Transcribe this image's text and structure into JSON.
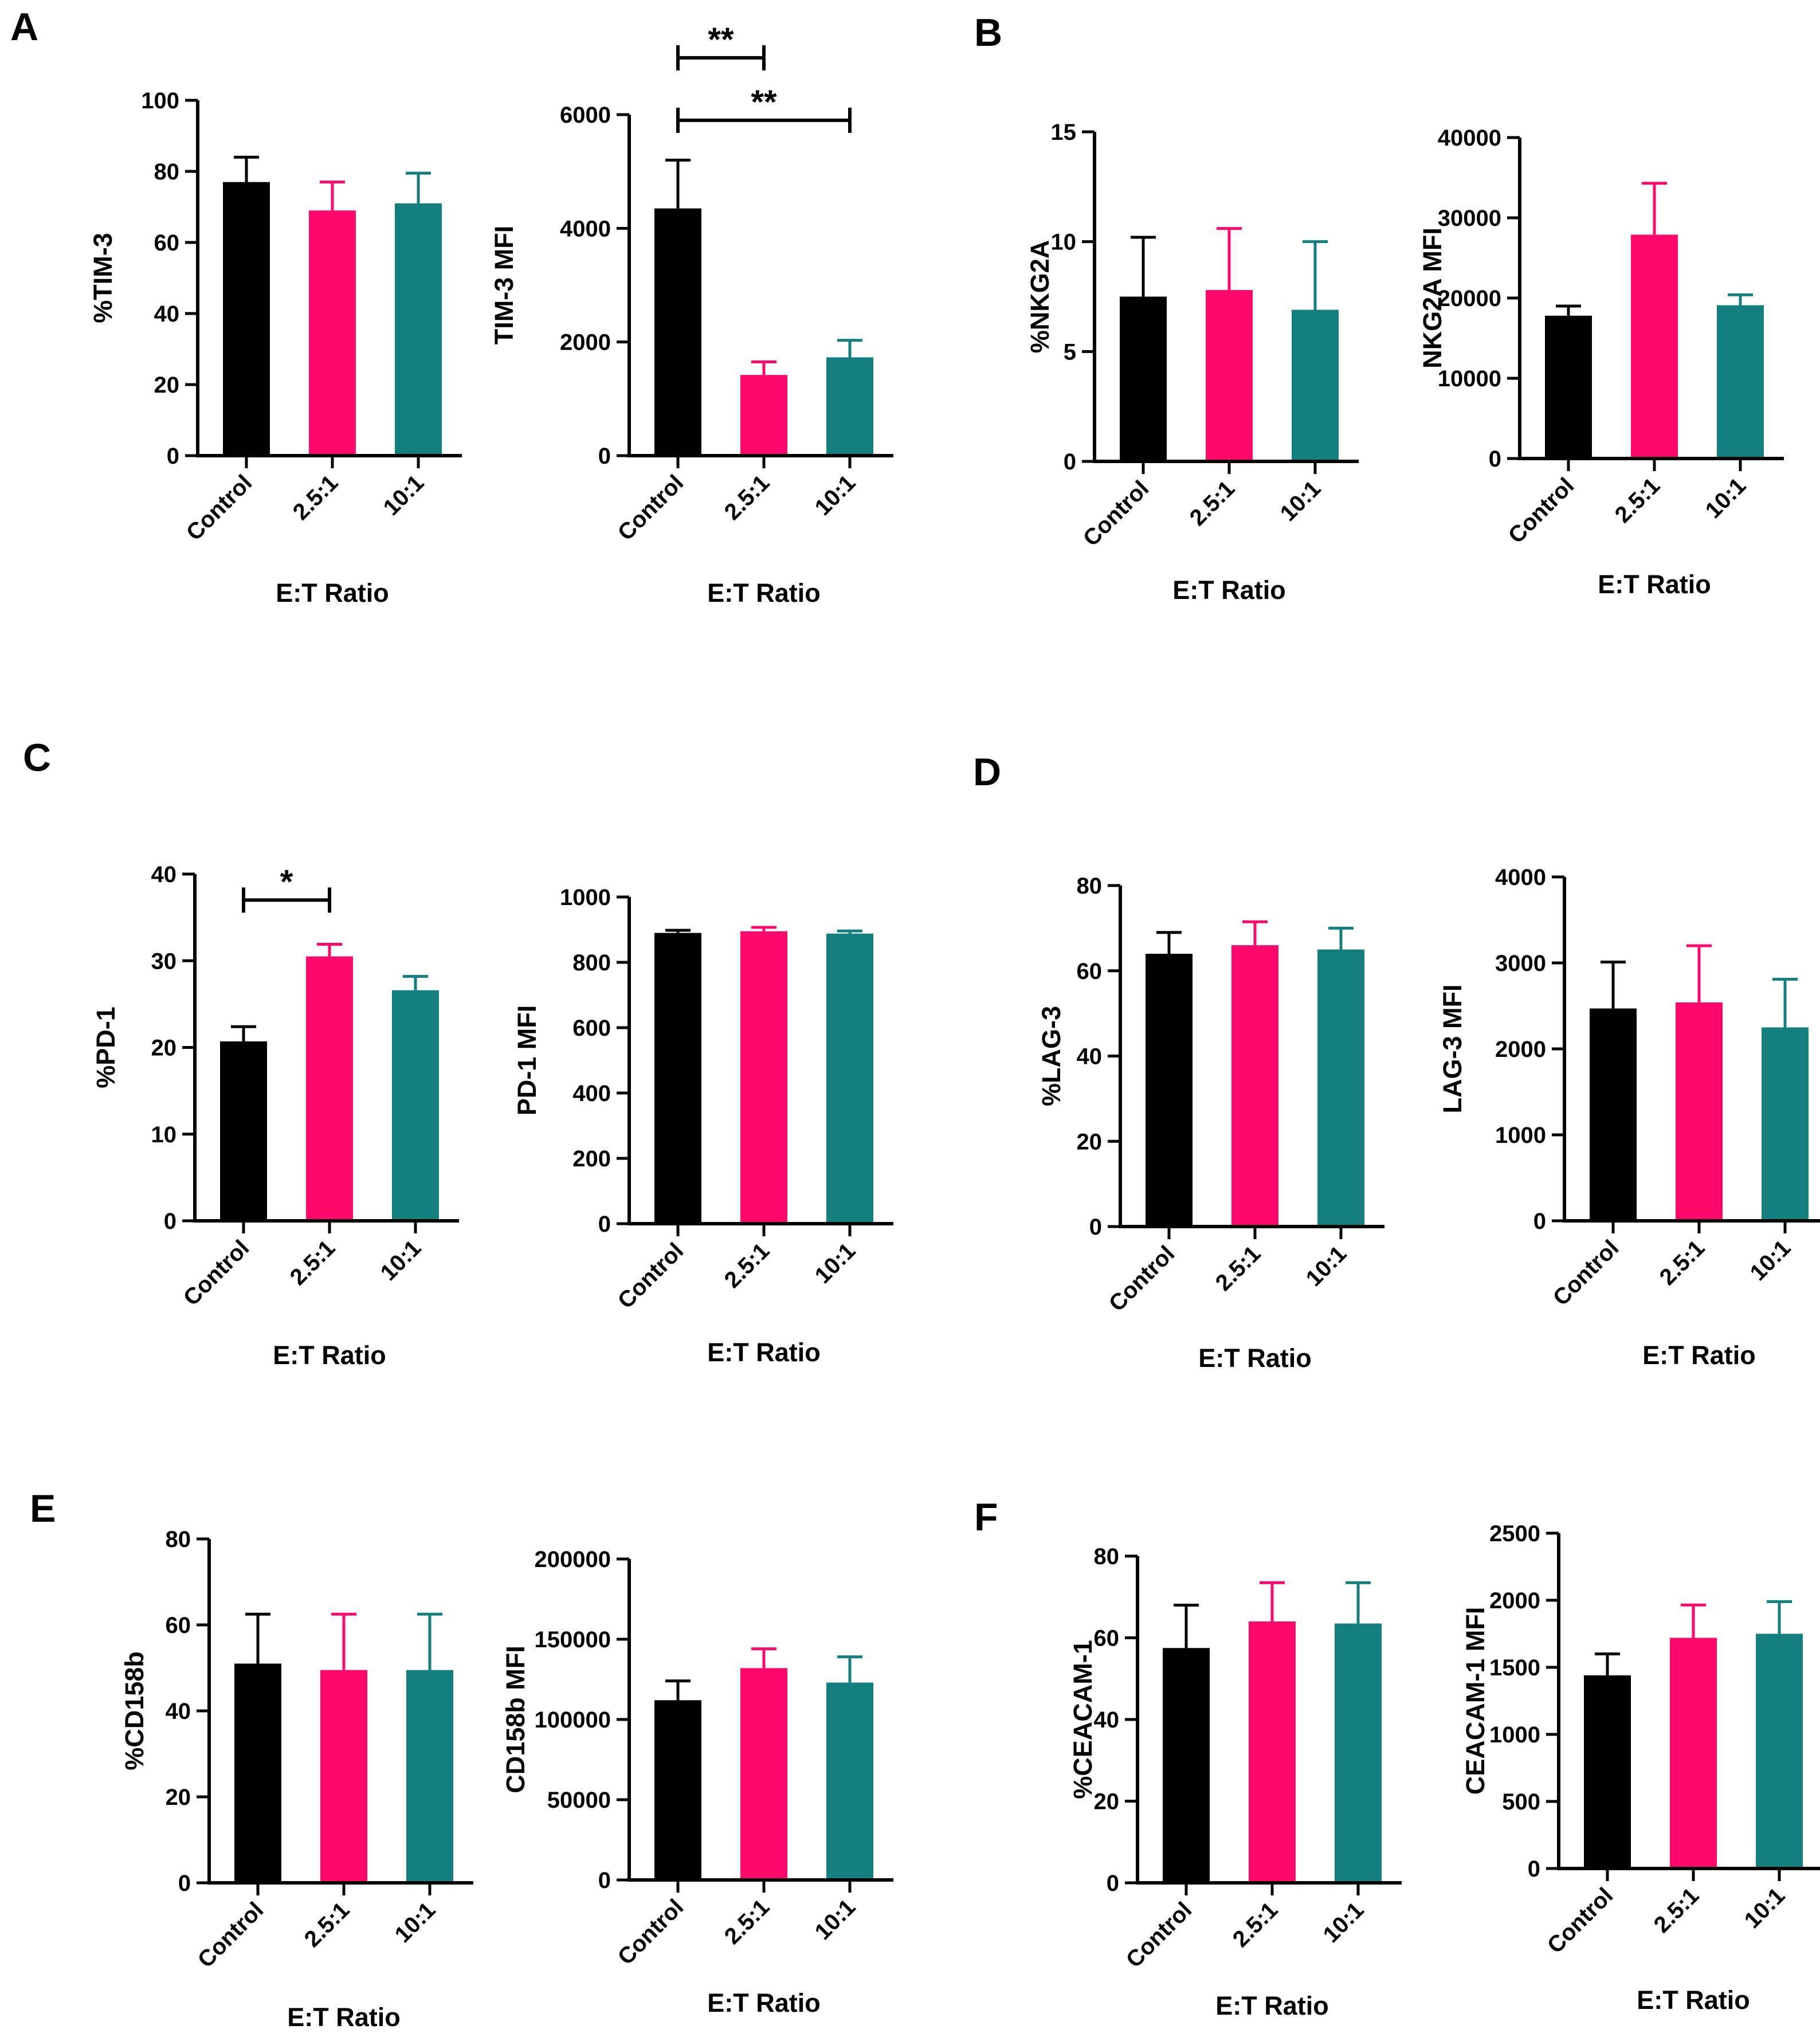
{
  "figure": {
    "panel_letters": [
      "A",
      "B",
      "C",
      "D",
      "E",
      "F"
    ]
  },
  "colors": {
    "control": "#000000",
    "ratio_2_5": "#ff0a6c",
    "ratio_10": "#137f7f",
    "axis": "#000000"
  },
  "chart_data": [
    {
      "id": "tim3-percent",
      "type": "bar",
      "panel": "A",
      "title": "",
      "ylabel": "%TIM-3",
      "xlabel": "E:T Ratio",
      "categories": [
        "Control",
        "2.5:1",
        "10:1"
      ],
      "values": [
        77,
        69,
        71
      ],
      "errors": [
        7,
        8,
        8.5
      ],
      "ylim": [
        0,
        100
      ],
      "yticks": [
        "0",
        "20",
        "40",
        "60",
        "80",
        "100"
      ],
      "ytick_values": [
        0,
        20,
        40,
        60,
        80,
        100
      ],
      "significance": []
    },
    {
      "id": "tim3-mfi",
      "type": "bar",
      "panel": "A",
      "title": "",
      "ylabel": "TIM-3 MFI",
      "xlabel": "E:T Ratio",
      "categories": [
        "Control",
        "2.5:1",
        "10:1"
      ],
      "values": [
        4350,
        1420,
        1730
      ],
      "errors": [
        850,
        230,
        300
      ],
      "ylim": [
        0,
        6000
      ],
      "yticks": [
        "0",
        "2000",
        "4000",
        "6000"
      ],
      "ytick_values": [
        0,
        2000,
        4000,
        6000
      ],
      "significance": [
        {
          "from": 0,
          "to": 1,
          "label": "**",
          "y": 7000
        },
        {
          "from": 0,
          "to": 2,
          "label": "**",
          "y": 5900
        }
      ]
    },
    {
      "id": "nkg2a-percent",
      "type": "bar",
      "panel": "B",
      "title": "",
      "ylabel": "%NKG2A",
      "xlabel": "E:T Ratio",
      "categories": [
        "Control",
        "2.5:1",
        "10:1"
      ],
      "values": [
        7.5,
        7.8,
        6.9
      ],
      "errors": [
        2.7,
        2.8,
        3.1
      ],
      "ylim": [
        0,
        15
      ],
      "yticks": [
        "0",
        "5",
        "10",
        "15"
      ],
      "ytick_values": [
        0,
        5,
        10,
        15
      ],
      "significance": []
    },
    {
      "id": "nkg2a-mfi",
      "type": "bar",
      "panel": "B",
      "title": "",
      "ylabel": "NKG2A MFI",
      "xlabel": "E:T  Ratio",
      "categories": [
        "Control",
        "2.5:1",
        "10:1"
      ],
      "values": [
        17800,
        27900,
        19100
      ],
      "errors": [
        1200,
        6400,
        1300
      ],
      "ylim": [
        0,
        40000
      ],
      "yticks": [
        "0",
        "10000",
        "20000",
        "30000",
        "40000"
      ],
      "ytick_values": [
        0,
        10000,
        20000,
        30000,
        40000
      ],
      "significance": []
    },
    {
      "id": "pd1-percent",
      "type": "bar",
      "panel": "C",
      "title": "",
      "ylabel": "%PD-1",
      "xlabel": "E:T Ratio",
      "categories": [
        "Control",
        "2.5:1",
        "10:1"
      ],
      "values": [
        20.7,
        30.5,
        26.6
      ],
      "errors": [
        1.7,
        1.4,
        1.6
      ],
      "ylim": [
        0,
        40
      ],
      "yticks": [
        "0",
        "10",
        "20",
        "30",
        "40"
      ],
      "ytick_values": [
        0,
        10,
        20,
        30,
        40
      ],
      "significance": [
        {
          "from": 0,
          "to": 1,
          "label": "*",
          "y": 37
        }
      ]
    },
    {
      "id": "pd1-mfi",
      "type": "bar",
      "panel": "C",
      "title": "",
      "ylabel": "PD-1 MFI",
      "xlabel": "E:T Ratio",
      "categories": [
        "Control",
        "2.5:1",
        "10:1"
      ],
      "values": [
        890,
        895,
        888
      ],
      "errors": [
        8,
        12,
        8
      ],
      "ylim": [
        0,
        1000
      ],
      "yticks": [
        "0",
        "200",
        "400",
        "600",
        "800",
        "1000"
      ],
      "ytick_values": [
        0,
        200,
        400,
        600,
        800,
        1000
      ],
      "significance": []
    },
    {
      "id": "lag3-percent",
      "type": "bar",
      "panel": "D",
      "title": "",
      "ylabel": "%LAG-3",
      "xlabel": "E:T Ratio",
      "categories": [
        "Control",
        "2.5:1",
        "10:1"
      ],
      "values": [
        64,
        66,
        65
      ],
      "errors": [
        5,
        5.5,
        5
      ],
      "ylim": [
        0,
        80
      ],
      "yticks": [
        "0",
        "20",
        "40",
        "60",
        "80"
      ],
      "ytick_values": [
        0,
        20,
        40,
        60,
        80
      ],
      "significance": []
    },
    {
      "id": "lag3-mfi",
      "type": "bar",
      "panel": "D",
      "title": "",
      "ylabel": "LAG-3 MFI",
      "xlabel": "E:T  Ratio",
      "categories": [
        "Control",
        "2.5:1",
        "10:1"
      ],
      "values": [
        2470,
        2540,
        2250
      ],
      "errors": [
        540,
        660,
        560
      ],
      "ylim": [
        0,
        4000
      ],
      "yticks": [
        "0",
        "1000",
        "2000",
        "3000",
        "4000"
      ],
      "ytick_values": [
        0,
        1000,
        2000,
        3000,
        4000
      ],
      "significance": []
    },
    {
      "id": "cd158b-percent",
      "type": "bar",
      "panel": "E",
      "title": "",
      "ylabel": "%CD158b",
      "xlabel": "E:T Ratio",
      "categories": [
        "Control",
        "2.5:1",
        "10:1"
      ],
      "values": [
        51,
        49.5,
        49.5
      ],
      "errors": [
        11.5,
        13,
        13
      ],
      "ylim": [
        0,
        80
      ],
      "yticks": [
        "0",
        "20",
        "40",
        "60",
        "80"
      ],
      "ytick_values": [
        0,
        20,
        40,
        60,
        80
      ],
      "significance": []
    },
    {
      "id": "cd158b-mfi",
      "type": "bar",
      "panel": "E",
      "title": "",
      "ylabel": "CD158b MFI",
      "xlabel": "E:T Ratio",
      "categories": [
        "Control",
        "2.5:1",
        "10:1"
      ],
      "values": [
        112000,
        132000,
        123000
      ],
      "errors": [
        12000,
        12000,
        16000
      ],
      "ylim": [
        0,
        200000
      ],
      "yticks": [
        "0",
        "50000",
        "100000",
        "150000",
        "200000"
      ],
      "ytick_values": [
        0,
        50000,
        100000,
        150000,
        200000
      ],
      "significance": []
    },
    {
      "id": "ceacam1-percent",
      "type": "bar",
      "panel": "F",
      "title": "",
      "ylabel": "%CEACAM-1",
      "xlabel": "E:T Ratio",
      "categories": [
        "Control",
        "2.5:1",
        "10:1"
      ],
      "values": [
        57.5,
        64,
        63.5
      ],
      "errors": [
        10.5,
        9.5,
        10
      ],
      "ylim": [
        0,
        80
      ],
      "yticks": [
        "0",
        "20",
        "40",
        "60",
        "80"
      ],
      "ytick_values": [
        0,
        20,
        40,
        60,
        80
      ],
      "significance": []
    },
    {
      "id": "ceacam1-mfi",
      "type": "bar",
      "panel": "F",
      "title": "",
      "ylabel": "CEACAM-1 MFI",
      "xlabel": "E:T Ratio",
      "categories": [
        "Control",
        "2.5:1",
        "10:1"
      ],
      "values": [
        1440,
        1720,
        1750
      ],
      "errors": [
        160,
        245,
        240
      ],
      "ylim": [
        0,
        2500
      ],
      "yticks": [
        "0",
        "500",
        "1000",
        "1500",
        "2000",
        "2500"
      ],
      "ytick_values": [
        0,
        500,
        1000,
        1500,
        2000,
        2500
      ],
      "significance": []
    }
  ]
}
